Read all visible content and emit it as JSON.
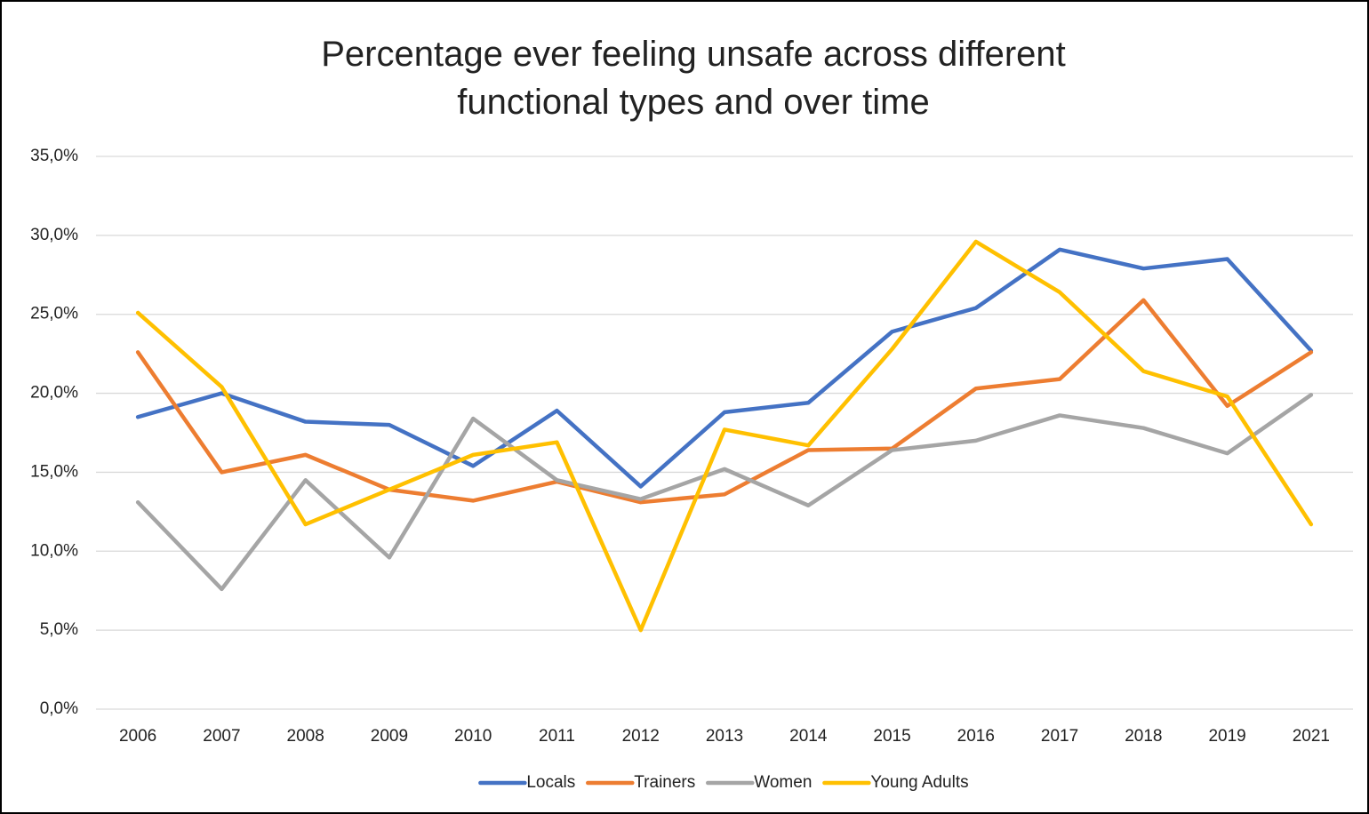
{
  "chart_data": {
    "type": "line",
    "title": "Percentage ever feeling unsafe across different functional types and over time",
    "categories": [
      "2006",
      "2007",
      "2008",
      "2009",
      "2010",
      "2011",
      "2012",
      "2013",
      "2014",
      "2015",
      "2016",
      "2017",
      "2018",
      "2019",
      "2021"
    ],
    "series": [
      {
        "name": "Locals",
        "color": "#4472c4",
        "values": [
          18.5,
          20.0,
          18.2,
          18.0,
          15.4,
          18.9,
          14.1,
          18.8,
          19.4,
          23.9,
          25.4,
          29.1,
          27.9,
          28.5,
          22.7
        ]
      },
      {
        "name": "Trainers",
        "color": "#ed7d31",
        "values": [
          22.6,
          15.0,
          16.1,
          13.9,
          13.2,
          14.4,
          13.1,
          13.6,
          16.4,
          16.5,
          20.3,
          20.9,
          25.9,
          19.2,
          22.6
        ]
      },
      {
        "name": "Women",
        "color": "#a5a5a5",
        "values": [
          13.1,
          7.6,
          14.5,
          9.6,
          18.4,
          14.5,
          13.3,
          15.2,
          12.9,
          16.4,
          17.0,
          18.6,
          17.8,
          16.2,
          19.9
        ]
      },
      {
        "name": "Young Adults",
        "color": "#ffc000",
        "values": [
          25.1,
          20.4,
          11.7,
          13.9,
          16.1,
          16.9,
          5.0,
          17.7,
          16.7,
          22.8,
          29.6,
          26.4,
          21.4,
          19.8,
          11.7
        ]
      }
    ],
    "ylim": [
      0,
      35
    ],
    "yticks": [
      {
        "value": 0,
        "label": "0,0%"
      },
      {
        "value": 5,
        "label": "5,0%"
      },
      {
        "value": 10,
        "label": "10,0%"
      },
      {
        "value": 15,
        "label": "15,0%"
      },
      {
        "value": 20,
        "label": "20,0%"
      },
      {
        "value": 25,
        "label": "25,0%"
      },
      {
        "value": 30,
        "label": "30,0%"
      },
      {
        "value": 35,
        "label": "35,0%"
      }
    ],
    "grid": true,
    "legend": "bottom"
  }
}
